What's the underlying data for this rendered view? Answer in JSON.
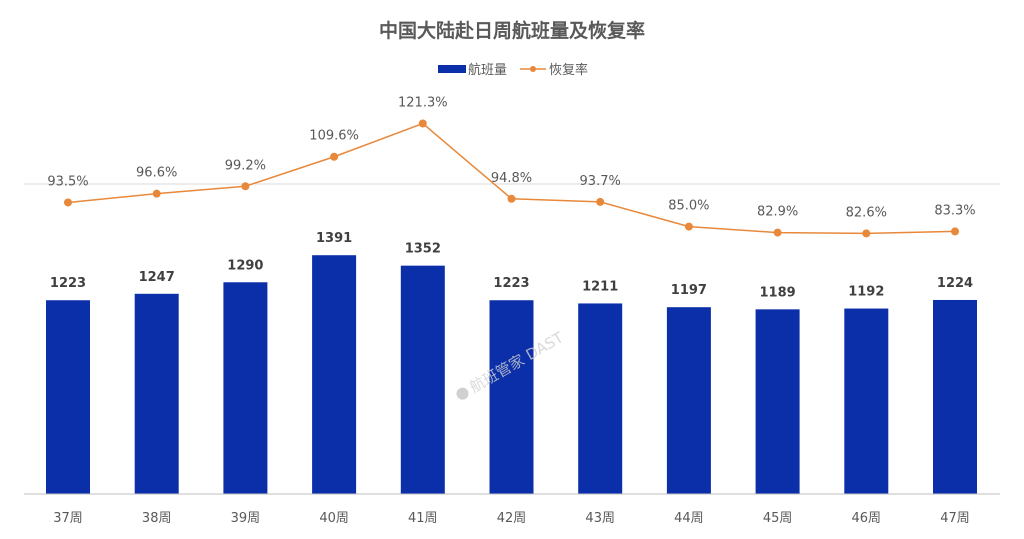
{
  "chart_data": {
    "type": "bar+line",
    "title": "中国大陆赴日周航班量及恢复率",
    "categories": [
      "37周",
      "38周",
      "39周",
      "40周",
      "41周",
      "42周",
      "43周",
      "44周",
      "45周",
      "46周",
      "47周"
    ],
    "series": [
      {
        "name": "航班量",
        "type": "bar",
        "values": [
          1223,
          1247,
          1290,
          1391,
          1352,
          1223,
          1211,
          1197,
          1189,
          1192,
          1224
        ],
        "labels": [
          "1223",
          "1247",
          "1290",
          "1391",
          "1352",
          "1223",
          "1211",
          "1197",
          "1189",
          "1192",
          "1224"
        ],
        "color": "#0a2fa8"
      },
      {
        "name": "恢复率",
        "type": "line",
        "values": [
          93.5,
          96.6,
          99.2,
          109.6,
          121.3,
          94.8,
          93.7,
          85.0,
          82.9,
          82.6,
          83.3
        ],
        "labels": [
          "93.5%",
          "96.6%",
          "99.2%",
          "109.6%",
          "121.3%",
          "94.8%",
          "93.7%",
          "85.0%",
          "82.9%",
          "82.6%",
          "83.3%"
        ],
        "color": "#e8883a"
      }
    ],
    "bar_axis_range": [
      500,
      1400
    ],
    "line_reference": 100,
    "legend_position": "top",
    "grid": false
  },
  "watermark": "航班管家 DAST"
}
